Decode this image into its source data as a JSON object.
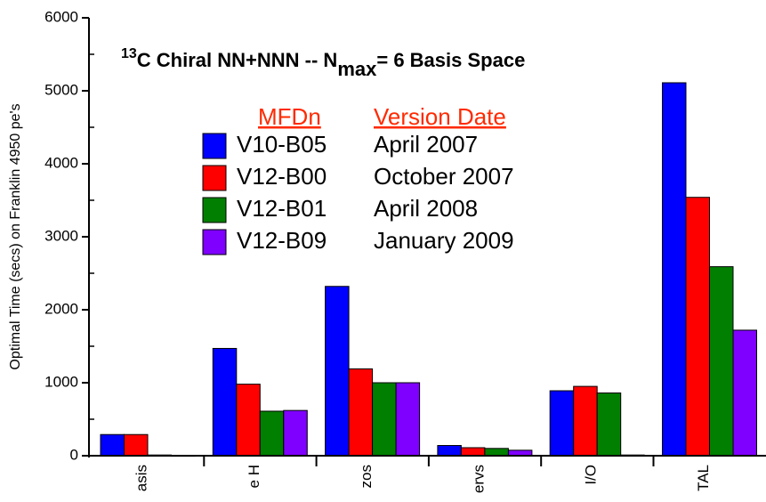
{
  "chart_data": {
    "type": "bar",
    "title_parts": [
      "13",
      "C  Chiral NN+NNN -- N",
      "max",
      "= 6 Basis Space"
    ],
    "y_label": "Optimal Time (secs) on Franklin 4950 pe's",
    "legend_headers": [
      "MFDn",
      "Version Date"
    ],
    "categories": [
      "asis",
      "e H",
      "zos",
      "ervs",
      "I/O",
      "TAL"
    ],
    "series": [
      {
        "name": "V10-B05",
        "date": "April 2007",
        "color": "#0000ff",
        "values": [
          290,
          1470,
          2320,
          140,
          890,
          5110
        ]
      },
      {
        "name": "V12-B00",
        "date": "October 2007",
        "color": "#ff0000",
        "values": [
          290,
          980,
          1190,
          110,
          950,
          3540
        ]
      },
      {
        "name": "V12-B01",
        "date": "April 2008",
        "color": "#007f00",
        "values": [
          10,
          610,
          1000,
          100,
          860,
          2590
        ]
      },
      {
        "name": "V12-B09",
        "date": "January 2009",
        "color": "#7f00ff",
        "values": [
          5,
          620,
          1000,
          75,
          10,
          1720
        ]
      }
    ],
    "ylim": [
      0,
      6000
    ],
    "yticks": [
      0,
      1000,
      2000,
      3000,
      4000,
      5000,
      6000
    ]
  }
}
